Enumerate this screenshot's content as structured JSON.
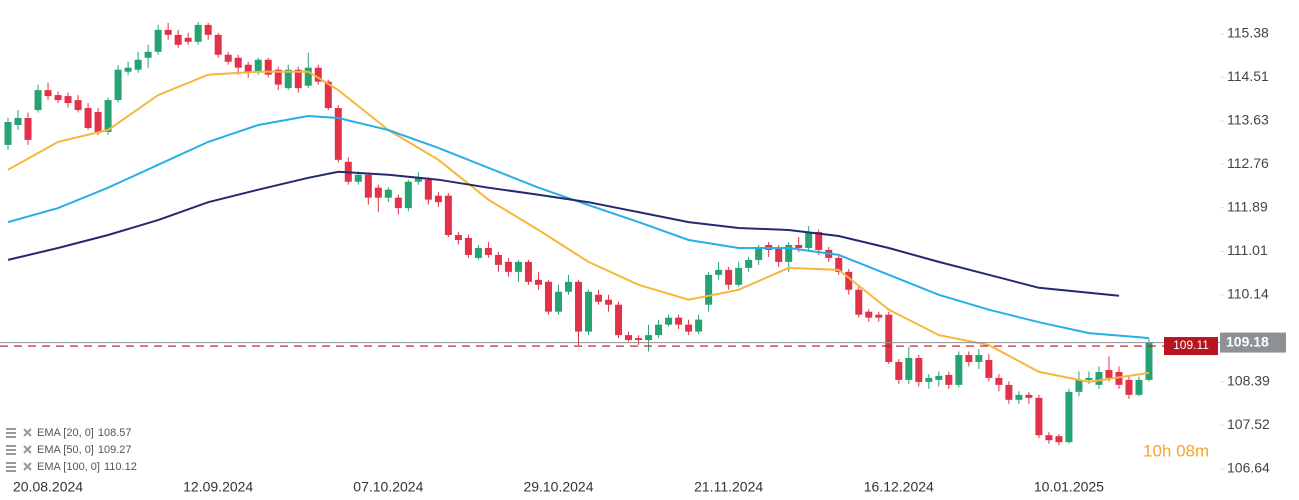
{
  "chart_data": {
    "type": "candlestick",
    "categories": [
      null,
      null,
      null,
      null,
      "20.08.2024",
      null,
      null,
      null,
      null,
      null,
      null,
      null,
      null,
      null,
      null,
      null,
      null,
      null,
      null,
      null,
      null,
      "12.09.2024",
      null,
      null,
      null,
      null,
      null,
      null,
      null,
      null,
      null,
      null,
      null,
      null,
      null,
      null,
      null,
      null,
      "07.10.2024",
      null,
      null,
      null,
      null,
      null,
      null,
      null,
      null,
      null,
      null,
      null,
      null,
      null,
      null,
      null,
      null,
      "29.10.2024",
      null,
      null,
      null,
      null,
      null,
      null,
      null,
      null,
      null,
      null,
      null,
      null,
      null,
      null,
      null,
      null,
      "21.11.2024",
      null,
      null,
      null,
      null,
      null,
      null,
      null,
      null,
      null,
      null,
      null,
      null,
      null,
      null,
      null,
      null,
      "16.12.2024",
      null,
      null,
      null,
      null,
      null,
      null,
      null,
      null,
      null,
      null,
      null,
      null,
      null,
      null,
      null,
      null,
      "10.01.2025",
      null,
      null,
      null,
      null,
      null,
      null,
      null,
      null
    ],
    "open": [
      113.15,
      113.55,
      113.69,
      113.85,
      114.25,
      114.15,
      114.13,
      114.05,
      113.89,
      113.81,
      113.41,
      114.05,
      114.62,
      114.66,
      114.9,
      115.02,
      115.46,
      115.36,
      115.3,
      115.22,
      115.56,
      115.36,
      114.96,
      114.9,
      114.76,
      114.62,
      114.86,
      114.66,
      114.29,
      114.66,
      114.34,
      114.7,
      114.42,
      113.89,
      112.81,
      112.41,
      112.55,
      112.29,
      112.09,
      112.09,
      111.88,
      112.41,
      112.45,
      112.13,
      112.13,
      111.34,
      111.28,
      110.88,
      111.08,
      110.94,
      110.8,
      110.6,
      110.8,
      110.44,
      110.4,
      109.8,
      110.2,
      110.4,
      109.4,
      110.14,
      110.04,
      109.94,
      109.33,
      109.27,
      109.23,
      109.33,
      109.54,
      109.68,
      109.54,
      109.4,
      109.94,
      110.54,
      110.64,
      110.34,
      110.68,
      110.84,
      111.14,
      111.08,
      110.8,
      111.14,
      111.08,
      111.4,
      111.04,
      110.88,
      110.6,
      110.24,
      109.8,
      109.74,
      109.74,
      108.79,
      108.43,
      108.87,
      108.39,
      108.43,
      108.53,
      108.33,
      108.93,
      108.79,
      108.83,
      108.47,
      108.33,
      108.03,
      108.13,
      108.07,
      107.32,
      107.3,
      107.18,
      108.19,
      108.43,
      108.33,
      108.63,
      108.59,
      108.43,
      108.13,
      108.43
    ],
    "high": [
      113.7,
      113.85,
      113.8,
      114.36,
      114.4,
      114.22,
      114.2,
      114.15,
      113.99,
      113.89,
      114.1,
      114.75,
      114.82,
      115.02,
      115.16,
      115.56,
      115.6,
      115.46,
      115.4,
      115.62,
      115.6,
      115.4,
      115.02,
      114.96,
      114.82,
      114.9,
      114.9,
      114.72,
      114.76,
      114.72,
      115.0,
      114.76,
      114.46,
      113.95,
      112.9,
      112.62,
      112.6,
      112.35,
      112.3,
      112.15,
      112.45,
      112.6,
      112.5,
      112.2,
      112.18,
      111.4,
      111.35,
      111.14,
      111.2,
      111.0,
      110.88,
      110.84,
      110.84,
      110.6,
      110.44,
      110.34,
      110.54,
      110.44,
      110.24,
      110.24,
      110.14,
      110.0,
      109.4,
      109.33,
      109.54,
      109.64,
      109.74,
      109.74,
      109.64,
      109.74,
      110.6,
      110.8,
      110.7,
      110.8,
      110.9,
      111.14,
      111.2,
      111.14,
      111.2,
      111.3,
      111.52,
      111.45,
      111.1,
      110.94,
      110.66,
      110.3,
      109.85,
      109.8,
      109.8,
      108.85,
      109.1,
      108.93,
      108.55,
      108.6,
      108.6,
      109.0,
      109.0,
      109.05,
      108.95,
      108.55,
      108.4,
      108.2,
      108.19,
      108.13,
      107.38,
      107.34,
      108.25,
      108.6,
      108.6,
      108.7,
      108.9,
      108.7,
      108.5,
      108.5,
      109.25
    ],
    "low": [
      113.05,
      113.45,
      113.15,
      113.8,
      114.05,
      113.99,
      113.9,
      113.8,
      113.45,
      113.35,
      113.35,
      114.0,
      114.55,
      114.6,
      114.7,
      114.96,
      115.26,
      115.1,
      115.16,
      115.16,
      115.26,
      114.9,
      114.76,
      114.56,
      114.5,
      114.56,
      114.5,
      114.25,
      114.25,
      114.2,
      114.29,
      114.36,
      113.85,
      112.8,
      112.35,
      112.35,
      111.95,
      111.8,
      112.0,
      111.75,
      111.82,
      112.35,
      111.95,
      111.9,
      111.3,
      111.15,
      110.88,
      110.84,
      110.88,
      110.6,
      110.5,
      110.4,
      110.34,
      110.24,
      109.74,
      109.74,
      110.14,
      109.13,
      109.33,
      109.94,
      109.8,
      109.27,
      109.2,
      109.13,
      109.0,
      109.27,
      109.5,
      109.45,
      109.33,
      109.35,
      109.8,
      110.44,
      110.24,
      110.3,
      110.6,
      110.74,
      110.9,
      110.7,
      110.6,
      111.0,
      111.0,
      110.94,
      110.8,
      110.54,
      110.14,
      109.68,
      109.6,
      109.6,
      108.75,
      108.35,
      108.35,
      108.3,
      108.25,
      108.3,
      108.25,
      108.28,
      108.7,
      108.65,
      108.4,
      108.2,
      107.95,
      107.95,
      107.95,
      107.26,
      107.15,
      107.12,
      107.15,
      108.1,
      108.35,
      108.25,
      108.4,
      108.25,
      108.05,
      108.1,
      108.4
    ],
    "close": [
      113.61,
      113.69,
      113.25,
      114.25,
      114.13,
      114.05,
      113.99,
      113.85,
      113.49,
      113.41,
      114.05,
      114.66,
      114.7,
      114.86,
      115.02,
      115.46,
      115.36,
      115.16,
      115.22,
      115.56,
      115.36,
      114.96,
      114.82,
      114.7,
      114.62,
      114.86,
      114.56,
      114.36,
      114.66,
      114.29,
      114.7,
      114.42,
      113.89,
      112.85,
      112.41,
      112.55,
      112.09,
      112.09,
      112.25,
      111.88,
      112.41,
      112.49,
      112.05,
      112.0,
      111.34,
      111.24,
      110.94,
      111.08,
      110.94,
      110.74,
      110.6,
      110.8,
      110.4,
      110.34,
      109.8,
      110.2,
      110.4,
      109.4,
      110.2,
      110.0,
      109.94,
      109.33,
      109.23,
      109.23,
      109.33,
      109.54,
      109.68,
      109.54,
      109.4,
      109.64,
      110.54,
      110.64,
      110.34,
      110.68,
      110.84,
      111.08,
      111.04,
      110.8,
      111.14,
      111.08,
      111.4,
      111.04,
      110.88,
      110.6,
      110.24,
      109.74,
      109.68,
      109.68,
      108.79,
      108.43,
      108.87,
      108.39,
      108.47,
      108.51,
      108.33,
      108.93,
      108.79,
      108.93,
      108.47,
      108.33,
      108.03,
      108.13,
      108.07,
      107.32,
      107.22,
      107.18,
      108.19,
      108.43,
      108.47,
      108.59,
      108.47,
      108.33,
      108.13,
      108.43,
      109.18
    ],
    "up_color": "#26a372",
    "down_color": "#e2324a",
    "lines": [
      {
        "name": "EMA [20, 0]",
        "last": 108.57,
        "color": "#f7b63c",
        "x": [
          0,
          5,
          10,
          15,
          20,
          25,
          30,
          33,
          38,
          43,
          48,
          53,
          58,
          63,
          68,
          73,
          78,
          83,
          88,
          93,
          98,
          103,
          108,
          114
        ],
        "values": [
          112.65,
          113.21,
          113.45,
          114.15,
          114.56,
          114.62,
          114.62,
          114.25,
          113.45,
          112.85,
          112.05,
          111.44,
          110.8,
          110.34,
          110.04,
          110.24,
          110.68,
          110.64,
          109.84,
          109.33,
          109.13,
          108.59,
          108.39,
          108.57
        ]
      },
      {
        "name": "EMA [50, 0]",
        "last": 109.27,
        "color": "#29aee6",
        "x": [
          0,
          5,
          10,
          15,
          20,
          25,
          30,
          33,
          38,
          43,
          48,
          53,
          58,
          63,
          68,
          73,
          78,
          83,
          88,
          93,
          98,
          103,
          108,
          114
        ],
        "values": [
          111.6,
          111.88,
          112.29,
          112.75,
          113.21,
          113.55,
          113.73,
          113.69,
          113.45,
          113.09,
          112.69,
          112.29,
          111.94,
          111.6,
          111.24,
          111.08,
          111.08,
          110.94,
          110.54,
          110.14,
          109.84,
          109.59,
          109.37,
          109.27
        ]
      },
      {
        "name": "EMA [100, 0]",
        "last": 110.12,
        "color": "#232a6e",
        "x": [
          0,
          5,
          10,
          15,
          20,
          25,
          30,
          33,
          38,
          43,
          48,
          53,
          58,
          63,
          68,
          73,
          78,
          83,
          88,
          93,
          98,
          103,
          108,
          111
        ],
        "values": [
          110.84,
          111.08,
          111.34,
          111.64,
          112.0,
          112.25,
          112.49,
          112.61,
          112.55,
          112.45,
          112.29,
          112.15,
          112.0,
          111.8,
          111.6,
          111.48,
          111.44,
          111.32,
          111.08,
          110.8,
          110.54,
          110.28,
          110.18,
          110.12
        ]
      }
    ],
    "price_lines": [
      {
        "value": 109.18,
        "color": "#8d9196",
        "dashed": false
      },
      {
        "value": 109.11,
        "color": "#b8141f",
        "dashed": true
      }
    ],
    "ylim": [
      106.46,
      116.06
    ],
    "yticks": [
      106.64,
      107.52,
      108.39,
      110.14,
      111.01,
      111.89,
      112.76,
      113.63,
      114.51,
      115.38
    ],
    "timer": "10h 08m"
  }
}
